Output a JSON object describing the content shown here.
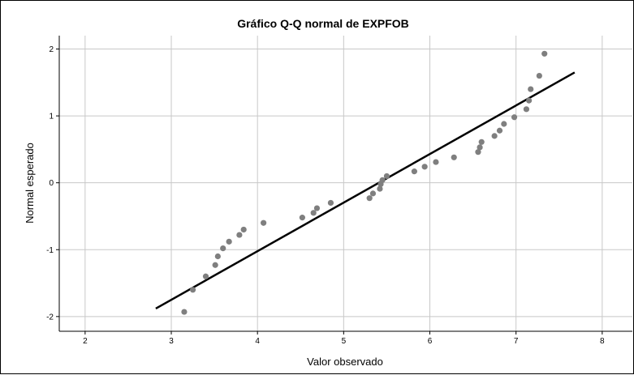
{
  "chart_data": {
    "type": "scatter",
    "title": "Gráfico Q-Q normal de EXPFOB",
    "xlabel": "Valor observado",
    "ylabel": "Normal esperado",
    "xlim": [
      1.7,
      8.35
    ],
    "ylim": [
      -2.22,
      2.2
    ],
    "xticks": [
      "2",
      "3",
      "4",
      "5",
      "6",
      "7",
      "8"
    ],
    "yticks": [
      "2",
      "1",
      "0",
      "-1",
      "-2"
    ],
    "xtick_values": [
      2,
      3,
      4,
      5,
      6,
      7,
      8
    ],
    "ytick_values": [
      2,
      1,
      0,
      -1,
      -2
    ],
    "grid": true,
    "point_color": "#7f7f7f",
    "line_color": "#000000",
    "reference_line": {
      "x": [
        2.82,
        7.68
      ],
      "y": [
        -1.88,
        1.65
      ]
    },
    "points": [
      {
        "x": 3.15,
        "y": -1.93
      },
      {
        "x": 3.25,
        "y": -1.6
      },
      {
        "x": 3.4,
        "y": -1.4
      },
      {
        "x": 3.51,
        "y": -1.23
      },
      {
        "x": 3.54,
        "y": -1.1
      },
      {
        "x": 3.6,
        "y": -0.98
      },
      {
        "x": 3.67,
        "y": -0.88
      },
      {
        "x": 3.79,
        "y": -0.78
      },
      {
        "x": 3.84,
        "y": -0.7
      },
      {
        "x": 4.07,
        "y": -0.6
      },
      {
        "x": 4.52,
        "y": -0.52
      },
      {
        "x": 4.65,
        "y": -0.45
      },
      {
        "x": 4.69,
        "y": -0.38
      },
      {
        "x": 4.85,
        "y": -0.3
      },
      {
        "x": 5.3,
        "y": -0.23
      },
      {
        "x": 5.34,
        "y": -0.16
      },
      {
        "x": 5.42,
        "y": -0.09
      },
      {
        "x": 5.43,
        "y": -0.02
      },
      {
        "x": 5.45,
        "y": 0.04
      },
      {
        "x": 5.5,
        "y": 0.1
      },
      {
        "x": 5.82,
        "y": 0.17
      },
      {
        "x": 5.94,
        "y": 0.24
      },
      {
        "x": 6.07,
        "y": 0.31
      },
      {
        "x": 6.28,
        "y": 0.38
      },
      {
        "x": 6.56,
        "y": 0.46
      },
      {
        "x": 6.58,
        "y": 0.53
      },
      {
        "x": 6.6,
        "y": 0.61
      },
      {
        "x": 6.75,
        "y": 0.7
      },
      {
        "x": 6.81,
        "y": 0.78
      },
      {
        "x": 6.86,
        "y": 0.88
      },
      {
        "x": 6.98,
        "y": 0.98
      },
      {
        "x": 7.12,
        "y": 1.1
      },
      {
        "x": 7.15,
        "y": 1.23
      },
      {
        "x": 7.17,
        "y": 1.4
      },
      {
        "x": 7.27,
        "y": 1.6
      },
      {
        "x": 7.33,
        "y": 1.93
      }
    ]
  }
}
